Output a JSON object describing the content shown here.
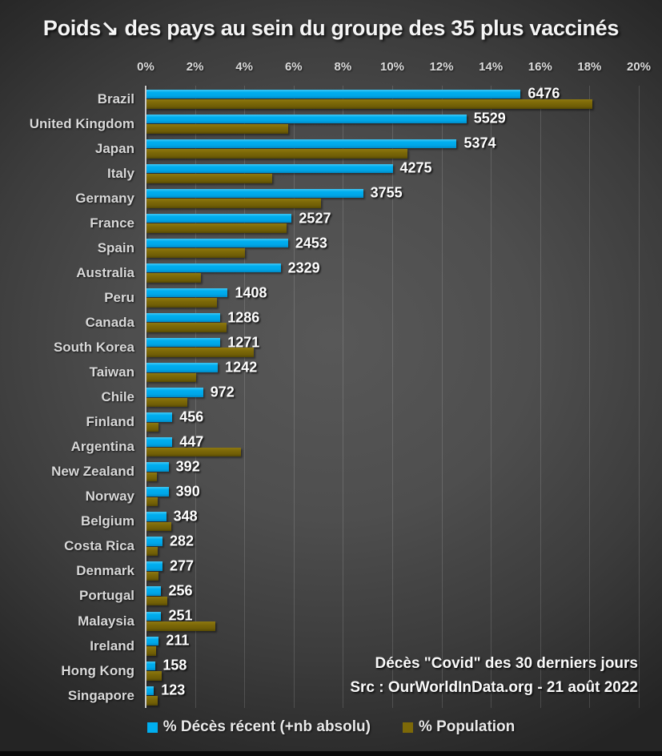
{
  "title": "Poids↘ des pays au sein du groupe des 35 plus vaccinés",
  "annotation": {
    "line1": "Décès \"Covid\" des 30 derniers jours",
    "line2": "Src : OurWorldInData.org - 21 août 2022"
  },
  "colors": {
    "deaths_blue": "#00AEEF",
    "population_gold": "#7D6908",
    "axis_line": "#C9C9C9",
    "background_dark": "#2b2b2b",
    "text_light": "#D9D9D9"
  },
  "chart_data": {
    "type": "bar",
    "orientation": "horizontal",
    "title": "Poids↘ des pays au sein du groupe des 35 plus vaccinés",
    "xlabel": "",
    "ylabel": "",
    "xlim": [
      0,
      20
    ],
    "x_tick_labels": [
      "0%",
      "2%",
      "4%",
      "6%",
      "8%",
      "10%",
      "12%",
      "14%",
      "16%",
      "18%",
      "20%"
    ],
    "grid": true,
    "legend_position": "bottom",
    "categories": [
      "Brazil",
      "United Kingdom",
      "Japan",
      "Italy",
      "Germany",
      "France",
      "Spain",
      "Australia",
      "Peru",
      "Canada",
      "South Korea",
      "Taiwan",
      "Chile",
      "Finland",
      "Argentina",
      "New Zealand",
      "Norway",
      "Belgium",
      "Costa Rica",
      "Denmark",
      "Portugal",
      "Malaysia",
      "Ireland",
      "Hong Kong",
      "Singapore"
    ],
    "series": [
      {
        "name": "% Décès récent (+nb absolu)",
        "color": "#00AEEF",
        "unit": "% of group total recent deaths",
        "values_pct": [
          15.2,
          13.0,
          12.6,
          10.0,
          8.8,
          5.9,
          5.75,
          5.45,
          3.3,
          3.0,
          3.0,
          2.9,
          2.3,
          1.05,
          1.05,
          0.9,
          0.9,
          0.8,
          0.65,
          0.65,
          0.6,
          0.6,
          0.5,
          0.37,
          0.3
        ],
        "bar_labels": [
          "6476",
          "5529",
          "5374",
          "4275",
          "3755",
          "2527",
          "2453",
          "2329",
          "1408",
          "1286",
          "1271",
          "1242",
          "972",
          "456",
          "447",
          "392",
          "390",
          "348",
          "282",
          "277",
          "256",
          "251",
          "211",
          "158",
          "123"
        ]
      },
      {
        "name": "% Population",
        "color": "#7D6908",
        "unit": "% of group total population",
        "values_pct": [
          18.1,
          5.75,
          10.6,
          5.1,
          7.1,
          5.7,
          4.0,
          2.2,
          2.85,
          3.25,
          4.35,
          2.0,
          1.65,
          0.5,
          3.85,
          0.42,
          0.45,
          1.0,
          0.45,
          0.5,
          0.85,
          2.8,
          0.4,
          0.63,
          0.47
        ]
      }
    ]
  }
}
